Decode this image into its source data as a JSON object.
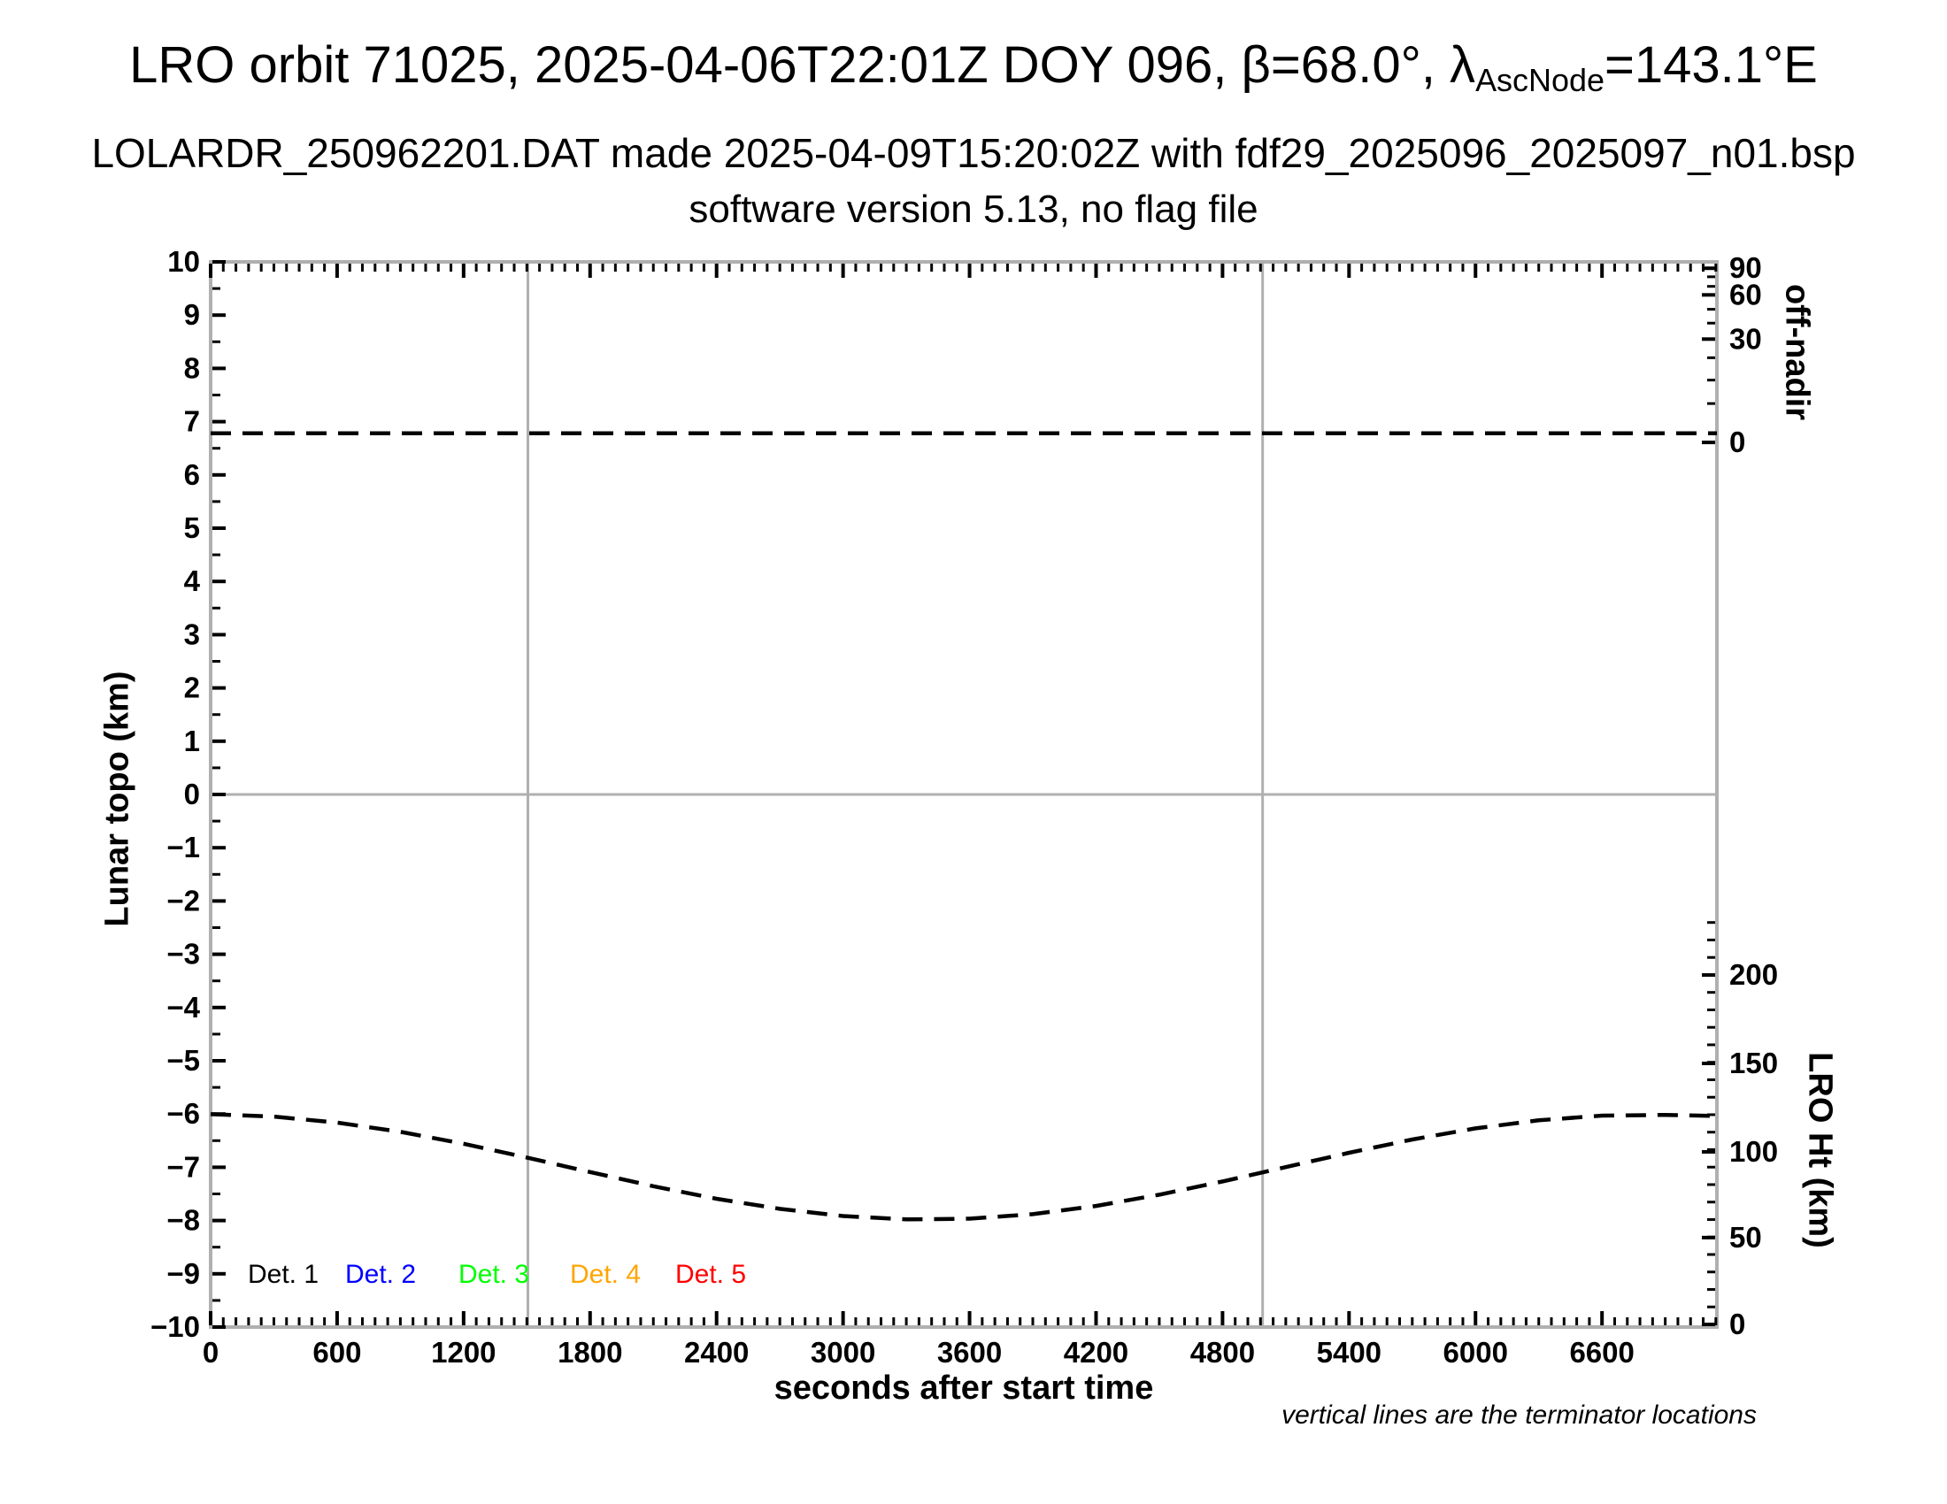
{
  "header": {
    "title_prefix": "LRO orbit 71025, 2025-04-06T22:01Z DOY 096, β=68.0°, λ",
    "title_sub": "AscNode",
    "title_suffix": "=143.1°E",
    "subtitle": "LOLARDR_250962201.DAT made 2025-04-09T15:20:02Z with fdf29_2025096_2025097_n01.bsp",
    "subtitle2": "software version 5.13, no flag file"
  },
  "chart_data": {
    "type": "line",
    "title": "LRO orbit 71025, 2025-04-06T22:01Z DOY 096, β=68.0°, λAscNode=143.1°E",
    "xlabel": "seconds after start time",
    "ylabel_left": "Lunar topo (km)",
    "xlim": [
      0,
      7145
    ],
    "x_major_step": 600,
    "x_minor_step": 60,
    "x_tick_labels": [
      "0",
      "600",
      "1200",
      "1800",
      "2400",
      "3000",
      "3600",
      "4200",
      "4800",
      "5400",
      "6000",
      "6600"
    ],
    "x_tick_values": [
      0,
      600,
      1200,
      1800,
      2400,
      3000,
      3600,
      4200,
      4800,
      5400,
      6000,
      6600
    ],
    "ylim_left": [
      -10,
      10
    ],
    "y_major_step": 1,
    "y_minor_step": 0.5,
    "y_tick_labels": [
      "10",
      "9",
      "8",
      "7",
      "6",
      "5",
      "4",
      "3",
      "2",
      "1",
      "0",
      "−1",
      "−2",
      "−3",
      "−4",
      "−5",
      "−6",
      "−7",
      "−8",
      "−9",
      "−10"
    ],
    "y_tick_values": [
      10,
      9,
      8,
      7,
      6,
      5,
      4,
      3,
      2,
      1,
      0,
      -1,
      -2,
      -3,
      -4,
      -5,
      -6,
      -7,
      -8,
      -9,
      -10
    ],
    "grid": {
      "zero_line_topo": 0,
      "terminator_lines_sec": [
        1505,
        4990
      ]
    },
    "right_axis_top": {
      "label": "off-nadir",
      "ticks": [
        {
          "value": "90",
          "topo_pos": 9.88
        },
        {
          "value": "60",
          "topo_pos": 9.38
        },
        {
          "value": "30",
          "topo_pos": 8.55
        },
        {
          "value": "0",
          "topo_pos": 6.61
        }
      ],
      "minor_topo_pos": [
        9.72,
        9.54,
        9.11,
        8.85,
        8.2,
        7.78,
        7.34
      ]
    },
    "right_axis_bottom": {
      "label": "LRO Ht (km)",
      "ticks": [
        {
          "value": "200",
          "topo_pos": -3.39
        },
        {
          "value": "150",
          "topo_pos": -5.05
        },
        {
          "value": "100",
          "topo_pos": -6.71
        },
        {
          "value": "50",
          "topo_pos": -8.32
        },
        {
          "value": "0",
          "topo_pos": -9.95
        }
      ],
      "topo_at_zero_km": -9.95,
      "topo_per_km": 0.03281,
      "minor_km_min": 0,
      "minor_km_max": 230,
      "minor_km_step": 10
    },
    "series": [
      {
        "name": "off-nadir angle",
        "axis": "right_top",
        "style": "dashed",
        "color": "#000000",
        "approx_value_deg": 2,
        "render_topo_pos": 6.78
      },
      {
        "name": "LRO height",
        "axis": "right_bottom",
        "style": "dashed",
        "color": "#000000",
        "points_t_km": [
          [
            0,
            120.3
          ],
          [
            300,
            118.9
          ],
          [
            600,
            115.5
          ],
          [
            900,
            110.2
          ],
          [
            1200,
            103.4
          ],
          [
            1500,
            95.5
          ],
          [
            1800,
            87.2
          ],
          [
            2100,
            79.1
          ],
          [
            2400,
            71.9
          ],
          [
            2700,
            66.1
          ],
          [
            3000,
            62.0
          ],
          [
            3300,
            60.1
          ],
          [
            3600,
            60.5
          ],
          [
            3900,
            63.1
          ],
          [
            4200,
            67.8
          ],
          [
            4500,
            74.2
          ],
          [
            4800,
            81.8
          ],
          [
            5100,
            90.0
          ],
          [
            5400,
            98.2
          ],
          [
            5700,
            105.8
          ],
          [
            6000,
            112.2
          ],
          [
            6300,
            116.8
          ],
          [
            6600,
            119.5
          ],
          [
            6900,
            119.9
          ],
          [
            7145,
            119.3
          ]
        ]
      }
    ],
    "legend": [
      {
        "label": "Det. 1",
        "color": "#000000"
      },
      {
        "label": "Det. 2",
        "color": "#0000ff"
      },
      {
        "label": "Det. 3",
        "color": "#00ff00"
      },
      {
        "label": "Det. 4",
        "color": "#ffa500"
      },
      {
        "label": "Det. 5",
        "color": "#ff0000"
      }
    ],
    "note": "vertical lines are the terminator locations",
    "frame_color": "#b0b0b0",
    "tick_color": "#000000",
    "legend_position": "bottom-left-inside",
    "grid_on": false
  }
}
